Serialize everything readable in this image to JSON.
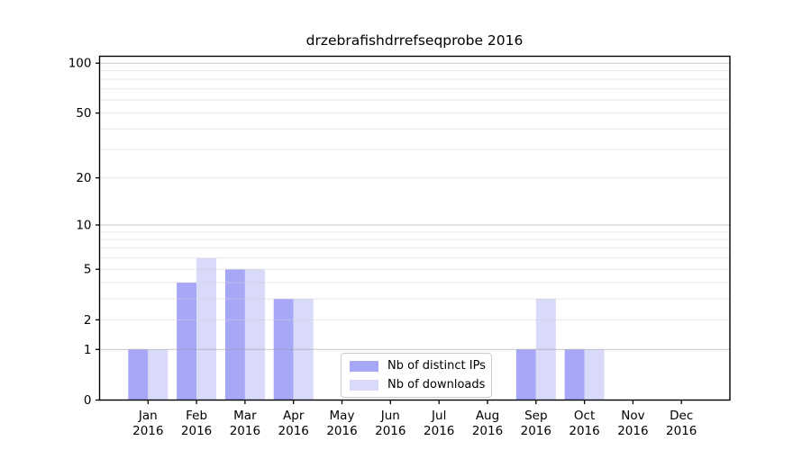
{
  "chart_data": {
    "type": "bar",
    "title": "drzebrafishdrrefseqprobe 2016",
    "categories": [
      "Jan",
      "Feb",
      "Mar",
      "Apr",
      "May",
      "Jun",
      "Jul",
      "Aug",
      "Sep",
      "Oct",
      "Nov",
      "Dec"
    ],
    "category_year": "2016",
    "series": [
      {
        "name": "Nb of distinct IPs",
        "color": "#a7a7f8",
        "values": [
          1,
          4,
          5,
          3,
          0,
          0,
          0,
          0,
          1,
          1,
          0,
          0
        ]
      },
      {
        "name": "Nb of downloads",
        "color": "#d9d9fa",
        "values": [
          1,
          6,
          5,
          3,
          0,
          0,
          0,
          0,
          3,
          1,
          0,
          0
        ]
      }
    ],
    "yscale": "log1p",
    "ylim": [
      0,
      110
    ],
    "yticks": [
      0,
      1,
      2,
      5,
      10,
      20,
      50,
      100
    ],
    "major_gridlines": [
      1,
      10,
      100
    ],
    "minor_gridlines": [
      2,
      3,
      4,
      5,
      6,
      7,
      8,
      9,
      20,
      30,
      40,
      50,
      60,
      70,
      80,
      90
    ],
    "grid": true,
    "legend_position": "lower center",
    "colors": {
      "axis": "#000000",
      "major_grid": "#999999",
      "minor_grid": "#cfcfcf",
      "legend_border": "#cccccc"
    }
  }
}
